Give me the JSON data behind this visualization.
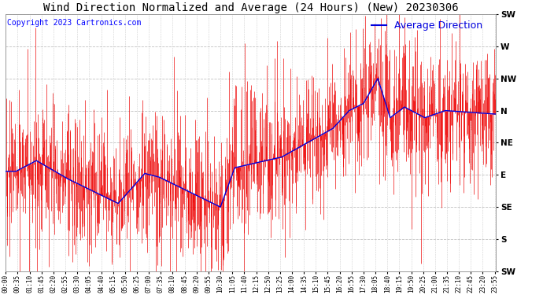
{
  "title": "Wind Direction Normalized and Average (24 Hours) (New) 20230306",
  "copyright": "Copyright 2023 Cartronics.com",
  "legend_label": "Average Direction",
  "background_color": "#ffffff",
  "plot_bg_color": "#ffffff",
  "grid_color": "#b0b0b0",
  "ytick_labels": [
    "SW",
    "W",
    "NW",
    "N",
    "NE",
    "E",
    "SE",
    "S",
    "SW"
  ],
  "ytick_values": [
    0,
    45,
    90,
    135,
    180,
    225,
    270,
    315,
    360
  ],
  "ylim": [
    0,
    360
  ],
  "ylim_inverted": true,
  "time_labels": [
    "00:00",
    "00:35",
    "01:10",
    "01:45",
    "02:20",
    "02:55",
    "03:30",
    "04:05",
    "04:40",
    "05:15",
    "05:50",
    "06:25",
    "07:00",
    "07:35",
    "08:10",
    "08:45",
    "09:20",
    "09:55",
    "10:30",
    "11:05",
    "11:40",
    "12:15",
    "12:50",
    "13:25",
    "14:00",
    "14:35",
    "15:10",
    "15:45",
    "16:20",
    "16:55",
    "17:30",
    "18:05",
    "18:40",
    "19:15",
    "19:50",
    "20:25",
    "21:00",
    "21:35",
    "22:10",
    "22:45",
    "23:20",
    "23:55"
  ],
  "red_line_color": "#ee0000",
  "blue_line_color": "#0000dd",
  "title_fontsize": 10,
  "copyright_fontsize": 7,
  "legend_fontsize": 9
}
